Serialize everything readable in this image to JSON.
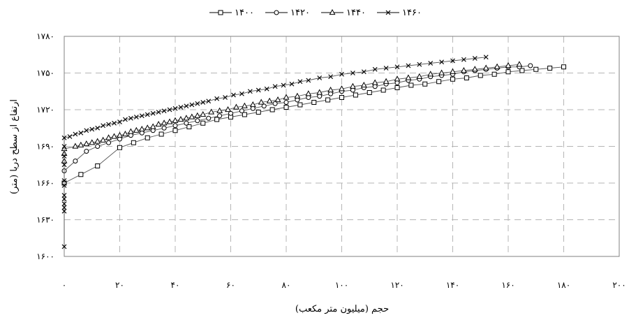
{
  "chart_data": {
    "type": "scatter",
    "xlabel": "حجم (میلیون متر مکعب)",
    "ylabel": "ارتفاع از سطح دریا (متر)",
    "xlim": [
      0,
      200
    ],
    "ylim": [
      1600,
      1780
    ],
    "x_ticks": [
      0,
      20,
      40,
      60,
      80,
      100,
      120,
      140,
      160,
      180,
      200
    ],
    "y_ticks": [
      1600,
      1630,
      1660,
      1690,
      1720,
      1750,
      1780
    ],
    "x_tick_labels": [
      "۰",
      "۲۰",
      "۴۰",
      "۶۰",
      "۸۰",
      "۱۰۰",
      "۱۲۰",
      "۱۴۰",
      "۱۶۰",
      "۱۸۰",
      "۲۰۰"
    ],
    "y_tick_labels": [
      "۱۶۰۰",
      "۱۶۳۰",
      "۱۶۶۰",
      "۱۶۹۰",
      "۱۷۲۰",
      "۱۷۵۰",
      "۱۷۸۰"
    ],
    "grid": true,
    "legend_position": "top-center",
    "series": [
      {
        "name": "۱۴۰۰",
        "marker": "square",
        "x": [
          0,
          6,
          12,
          20,
          25,
          30,
          35,
          40,
          45,
          50,
          55,
          60,
          65,
          70,
          75,
          80,
          85,
          90,
          95,
          100,
          105,
          110,
          115,
          120,
          125,
          130,
          135,
          140,
          145,
          150,
          155,
          160,
          165,
          170,
          175,
          180
        ],
        "y": [
          1660,
          1667,
          1674,
          1689,
          1693,
          1697,
          1700,
          1703,
          1706,
          1709,
          1712,
          1714,
          1716,
          1718,
          1720,
          1722,
          1724,
          1726,
          1728,
          1730,
          1732,
          1734,
          1736,
          1738,
          1740,
          1741,
          1743,
          1745,
          1746,
          1748,
          1749,
          1751,
          1752,
          1753,
          1754,
          1755
        ]
      },
      {
        "name": "۱۴۲۰",
        "marker": "circle",
        "x": [
          0,
          4,
          8,
          12,
          16,
          20,
          24,
          28,
          32,
          36,
          40,
          44,
          48,
          52,
          56,
          60,
          64,
          68,
          72,
          76,
          80,
          84,
          88,
          92,
          96,
          100,
          104,
          108,
          112,
          116,
          120,
          124,
          128,
          132,
          136,
          140,
          144,
          148,
          152,
          156,
          160,
          164,
          168
        ],
        "y": [
          1670,
          1678,
          1686,
          1690,
          1693,
          1696,
          1699,
          1701,
          1703,
          1705,
          1707,
          1709,
          1711,
          1713,
          1715,
          1717,
          1719,
          1721,
          1723,
          1725,
          1726,
          1728,
          1730,
          1731,
          1733,
          1735,
          1736,
          1738,
          1739,
          1741,
          1742,
          1744,
          1745,
          1747,
          1748,
          1749,
          1751,
          1752,
          1753,
          1754,
          1755,
          1755,
          1756
        ]
      },
      {
        "name": "۱۴۴۰",
        "marker": "triangle",
        "x": [
          0,
          0,
          0,
          4,
          6,
          8,
          10,
          12,
          14,
          16,
          18,
          20,
          22,
          24,
          26,
          28,
          30,
          32,
          34,
          36,
          38,
          40,
          42,
          44,
          46,
          48,
          50,
          53,
          56,
          59,
          62,
          65,
          68,
          71,
          74,
          77,
          80,
          84,
          88,
          92,
          96,
          100,
          104,
          108,
          112,
          116,
          120,
          124,
          128,
          132,
          136,
          140,
          144,
          148,
          152,
          156,
          160,
          164
        ],
        "y": [
          1678,
          1684,
          1688,
          1690,
          1691,
          1692,
          1693,
          1694,
          1695,
          1697,
          1698,
          1699,
          1700,
          1702,
          1703,
          1704,
          1705,
          1706,
          1708,
          1709,
          1710,
          1711,
          1712,
          1713,
          1714,
          1715,
          1716,
          1718,
          1719,
          1720,
          1722,
          1723,
          1724,
          1726,
          1727,
          1728,
          1730,
          1731,
          1733,
          1734,
          1736,
          1737,
          1739,
          1740,
          1742,
          1743,
          1745,
          1746,
          1747,
          1749,
          1750,
          1751,
          1752,
          1753,
          1754,
          1755,
          1756,
          1757
        ]
      },
      {
        "name": "۱۴۶۰",
        "marker": "x",
        "x": [
          0,
          0,
          0,
          0,
          0,
          0,
          0,
          0,
          0,
          0,
          0,
          0,
          2,
          4,
          6,
          8,
          10,
          12,
          14,
          16,
          18,
          20,
          22,
          24,
          26,
          28,
          30,
          32,
          34,
          36,
          38,
          40,
          42,
          44,
          46,
          48,
          50,
          52,
          55,
          58,
          61,
          64,
          67,
          70,
          73,
          76,
          79,
          82,
          85,
          88,
          92,
          96,
          100,
          104,
          108,
          112,
          116,
          120,
          124,
          128,
          132,
          136,
          140,
          144,
          148,
          152
        ],
        "y": [
          1608,
          1637,
          1640,
          1643,
          1647,
          1650,
          1658,
          1662,
          1675,
          1682,
          1690,
          1697,
          1698,
          1700,
          1701,
          1703,
          1704,
          1705,
          1707,
          1708,
          1709,
          1710,
          1712,
          1713,
          1714,
          1715,
          1716,
          1717,
          1718,
          1719,
          1720,
          1721,
          1722,
          1723,
          1724,
          1725,
          1726,
          1727,
          1729,
          1730,
          1732,
          1733,
          1735,
          1736,
          1737,
          1739,
          1740,
          1741,
          1743,
          1744,
          1746,
          1747,
          1749,
          1750,
          1751,
          1753,
          1754,
          1755,
          1756,
          1757,
          1758,
          1759,
          1760,
          1761,
          1762,
          1763
        ]
      }
    ]
  }
}
